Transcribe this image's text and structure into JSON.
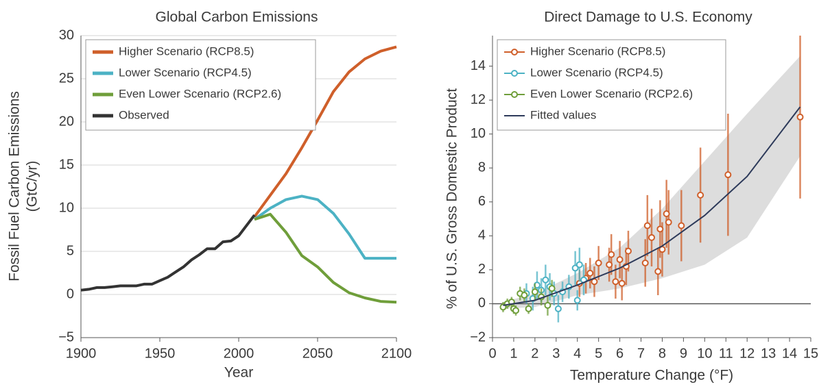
{
  "chart_data": [
    {
      "type": "line",
      "title": "Global Carbon Emissions",
      "x_label": "Year",
      "y_label": [
        "Fossil Fuel Carbon Emissions",
        "(GtC/yr)"
      ],
      "xlim": [
        1900,
        2100
      ],
      "xticks": [
        1900,
        1950,
        2000,
        2050,
        2100
      ],
      "ylim": [
        -5,
        30
      ],
      "yticks": [
        {
          "value": -5,
          "label": "−5"
        },
        0,
        5,
        10,
        15,
        20,
        25,
        30
      ],
      "grid": true,
      "legend": "upper left",
      "series": [
        {
          "name": "Higher Scenario (RCP8.5)",
          "color": "#cf5f2a",
          "x": [
            2010,
            2020,
            2030,
            2040,
            2050,
            2060,
            2070,
            2080,
            2090,
            2100
          ],
          "values": [
            9.0,
            11.5,
            14.0,
            17.0,
            20.2,
            23.5,
            25.8,
            27.3,
            28.2,
            28.7
          ]
        },
        {
          "name": "Lower Scenario (RCP4.5)",
          "color": "#4cb2c4",
          "x": [
            2010,
            2020,
            2030,
            2040,
            2050,
            2060,
            2070,
            2080,
            2090,
            2100
          ],
          "values": [
            8.7,
            10.0,
            11.0,
            11.4,
            11.0,
            9.4,
            7.0,
            4.2,
            4.2,
            4.2
          ]
        },
        {
          "name": "Even Lower Scenario (RCP2.6)",
          "color": "#6f9e3a",
          "x": [
            2010,
            2020,
            2030,
            2040,
            2050,
            2060,
            2070,
            2080,
            2090,
            2100
          ],
          "values": [
            8.7,
            9.3,
            7.2,
            4.5,
            3.2,
            1.4,
            0.2,
            -0.4,
            -0.8,
            -0.9
          ]
        },
        {
          "name": "Observed",
          "color": "#333333",
          "x": [
            1900,
            1905,
            1910,
            1915,
            1920,
            1925,
            1930,
            1935,
            1940,
            1945,
            1950,
            1955,
            1960,
            1965,
            1970,
            1975,
            1980,
            1985,
            1990,
            1995,
            2000,
            2005,
            2010
          ],
          "values": [
            0.5,
            0.6,
            0.8,
            0.8,
            0.9,
            1.0,
            1.0,
            1.0,
            1.2,
            1.2,
            1.6,
            2.0,
            2.6,
            3.2,
            4.0,
            4.6,
            5.3,
            5.3,
            6.1,
            6.2,
            6.8,
            8.0,
            9.2
          ]
        }
      ]
    },
    {
      "type": "scatter",
      "title": "Direct Damage to U.S. Economy",
      "x_label": "Temperature Change (°F)",
      "y_label": "% of U.S. Gross Domestic Product",
      "xlim": [
        0,
        15
      ],
      "xticks": [
        0,
        1,
        2,
        3,
        4,
        5,
        6,
        7,
        8,
        9,
        10,
        11,
        12,
        13,
        14,
        15
      ],
      "ylim": [
        -2,
        15.8
      ],
      "yticks": [
        {
          "value": -2,
          "label": "−2"
        },
        0,
        2,
        4,
        6,
        8,
        10,
        12,
        14
      ],
      "legend": "upper left",
      "series": [
        {
          "name": "Higher Scenario (RCP8.5)",
          "color": "#cf5f2a",
          "x": [
            4.1,
            4.4,
            4.6,
            4.8,
            5.0,
            5.5,
            5.6,
            5.8,
            6.0,
            6.1,
            6.3,
            6.4,
            7.2,
            7.3,
            7.5,
            7.8,
            7.9,
            8.0,
            8.2,
            8.3,
            8.9,
            9.8,
            11.1,
            14.5
          ],
          "values": [
            1.2,
            1.5,
            1.8,
            1.3,
            2.4,
            2.3,
            2.9,
            1.3,
            2.6,
            1.2,
            2.2,
            3.1,
            2.4,
            4.6,
            3.9,
            1.9,
            4.4,
            3.2,
            5.3,
            4.8,
            4.6,
            6.4,
            7.6,
            11.0
          ],
          "errors": [
            0.8,
            0.9,
            0.9,
            0.9,
            1.0,
            1.0,
            1.2,
            1.0,
            1.1,
            1.0,
            1.1,
            1.2,
            1.4,
            1.8,
            1.7,
            1.4,
            1.7,
            1.6,
            2.0,
            1.9,
            2.1,
            2.8,
            3.6,
            4.8
          ]
        },
        {
          "name": "Lower Scenario (RCP4.5)",
          "color": "#4cb2c4",
          "x": [
            1.6,
            1.9,
            2.1,
            2.3,
            2.5,
            2.7,
            2.9,
            3.1,
            3.3,
            3.6,
            3.9,
            4.0,
            4.1,
            4.3
          ],
          "values": [
            0.6,
            0.3,
            1.1,
            0.8,
            1.4,
            1.0,
            0.6,
            -0.3,
            0.7,
            1.0,
            2.1,
            0.2,
            2.3,
            1.4
          ],
          "errors": [
            0.6,
            0.7,
            0.8,
            0.7,
            0.9,
            0.8,
            0.7,
            0.8,
            0.6,
            0.7,
            1.0,
            0.6,
            1.0,
            0.9
          ]
        },
        {
          "name": "Even Lower Scenario (RCP2.6)",
          "color": "#6f9e3a",
          "x": [
            0.5,
            0.7,
            0.9,
            1.0,
            1.1,
            1.3,
            1.5,
            1.7,
            2.0,
            2.3,
            2.6,
            2.8
          ],
          "values": [
            -0.2,
            0.0,
            0.1,
            -0.3,
            -0.4,
            0.6,
            0.5,
            -0.3,
            0.7,
            0.4,
            -0.1,
            0.9
          ],
          "errors": [
            0.3,
            0.3,
            0.3,
            0.3,
            0.3,
            0.4,
            0.4,
            0.3,
            0.5,
            0.5,
            0.6,
            0.5
          ]
        },
        {
          "name": "Fitted values",
          "color": "#2d3a5a",
          "band_color": "#dddddd",
          "x": [
            0.5,
            2,
            4,
            6,
            8,
            10,
            12,
            14.5
          ],
          "values": [
            -0.1,
            0.2,
            1.1,
            2.1,
            3.4,
            5.2,
            7.5,
            11.6
          ],
          "band_upper": [
            0.1,
            0.6,
            1.8,
            3.3,
            5.6,
            8.4,
            11.2,
            14.6
          ],
          "band_lower": [
            -0.3,
            -0.2,
            0.5,
            0.9,
            1.5,
            2.3,
            3.9,
            8.7
          ]
        }
      ]
    }
  ]
}
